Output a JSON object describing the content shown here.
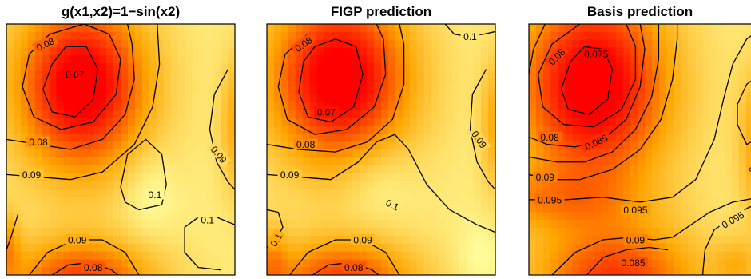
{
  "chart_data": [
    {
      "type": "heatmap",
      "title": "g(x1,x2)=1−sin(x2)",
      "colormap": "heat",
      "high_color": "#ffff9e",
      "low_color": "#ff0000",
      "contour_color": "#000000",
      "contour_labels": [
        "0.08",
        "0.07",
        "0.08",
        "0.09",
        "0.09",
        "0.1",
        "0.1",
        "0.09",
        "0.08"
      ]
    },
    {
      "type": "heatmap",
      "title": "FIGP prediction",
      "colormap": "heat",
      "high_color": "#ffff9e",
      "low_color": "#ff0000",
      "contour_color": "#000000",
      "contour_labels": [
        "0.08",
        "0.1",
        "0.07",
        "0.08",
        "0.09",
        "0.09",
        "0.1",
        "0.1",
        "0.09",
        "0.08"
      ]
    },
    {
      "type": "heatmap",
      "title": "Basis prediction",
      "colormap": "heat",
      "high_color": "#ffff9e",
      "low_color": "#ff0000",
      "contour_color": "#000000",
      "contour_labels": [
        "0.08",
        "0.075",
        "0.08",
        "0.085",
        "0.09",
        "0.095",
        "0.095",
        "0.09",
        "0.085",
        "0.095",
        "0.09",
        "0.09"
      ]
    }
  ]
}
